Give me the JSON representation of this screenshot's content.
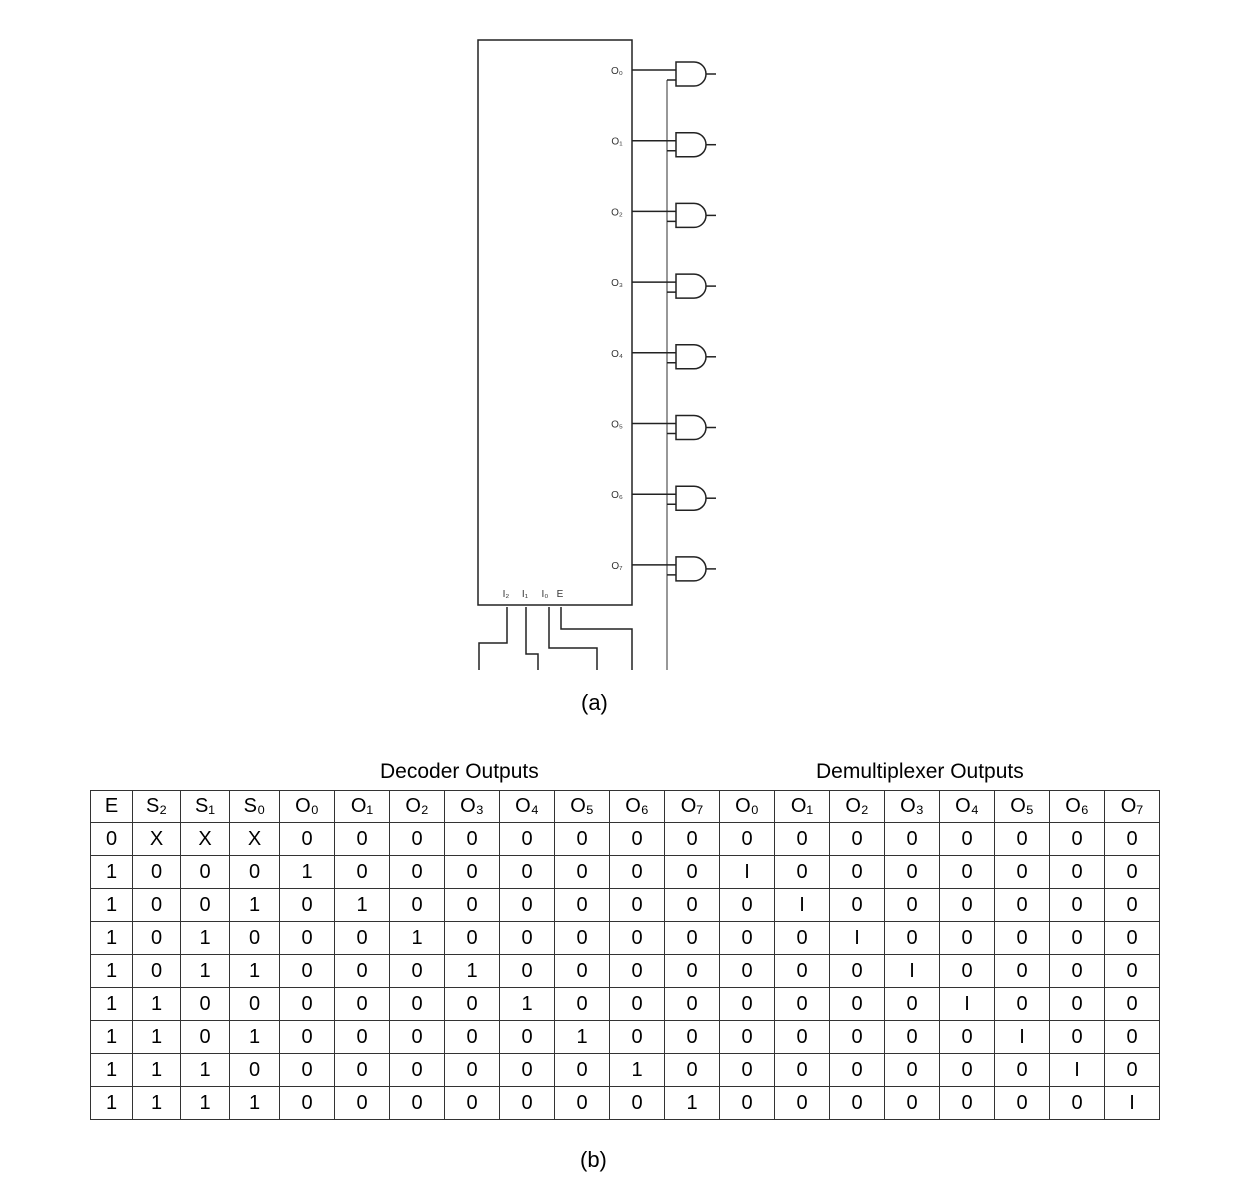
{
  "diagram": {
    "outputs": [
      "O₀",
      "O₁",
      "O₂",
      "O₃",
      "O₄",
      "O₅",
      "O₆",
      "O₇"
    ],
    "inputs": [
      "I₂",
      "I₁",
      "I₀",
      "E"
    ]
  },
  "captions": {
    "a": "(a)",
    "b": "(b)"
  },
  "table": {
    "decoder_title": "Decoder Outputs",
    "demux_title": "Demultiplexer Outputs",
    "headers": [
      "E",
      "S₂",
      "S₁",
      "S₀",
      "O₀",
      "O₁",
      "O₂",
      "O₃",
      "O₄",
      "O₅",
      "O₆",
      "O₇",
      "O₀",
      "O₁",
      "O₂",
      "O₃",
      "O₄",
      "O₅",
      "O₆",
      "O₇"
    ],
    "rows": [
      [
        "0",
        "X",
        "X",
        "X",
        "0",
        "0",
        "0",
        "0",
        "0",
        "0",
        "0",
        "0",
        "0",
        "0",
        "0",
        "0",
        "0",
        "0",
        "0",
        "0"
      ],
      [
        "1",
        "0",
        "0",
        "0",
        "1",
        "0",
        "0",
        "0",
        "0",
        "0",
        "0",
        "0",
        "I",
        "0",
        "0",
        "0",
        "0",
        "0",
        "0",
        "0"
      ],
      [
        "1",
        "0",
        "0",
        "1",
        "0",
        "1",
        "0",
        "0",
        "0",
        "0",
        "0",
        "0",
        "0",
        "I",
        "0",
        "0",
        "0",
        "0",
        "0",
        "0"
      ],
      [
        "1",
        "0",
        "1",
        "0",
        "0",
        "0",
        "1",
        "0",
        "0",
        "0",
        "0",
        "0",
        "0",
        "0",
        "I",
        "0",
        "0",
        "0",
        "0",
        "0"
      ],
      [
        "1",
        "0",
        "1",
        "1",
        "0",
        "0",
        "0",
        "1",
        "0",
        "0",
        "0",
        "0",
        "0",
        "0",
        "0",
        "I",
        "0",
        "0",
        "0",
        "0"
      ],
      [
        "1",
        "1",
        "0",
        "0",
        "0",
        "0",
        "0",
        "0",
        "1",
        "0",
        "0",
        "0",
        "0",
        "0",
        "0",
        "0",
        "I",
        "0",
        "0",
        "0"
      ],
      [
        "1",
        "1",
        "0",
        "1",
        "0",
        "0",
        "0",
        "0",
        "0",
        "1",
        "0",
        "0",
        "0",
        "0",
        "0",
        "0",
        "0",
        "I",
        "0",
        "0"
      ],
      [
        "1",
        "1",
        "1",
        "0",
        "0",
        "0",
        "0",
        "0",
        "0",
        "0",
        "1",
        "0",
        "0",
        "0",
        "0",
        "0",
        "0",
        "0",
        "I",
        "0"
      ],
      [
        "1",
        "1",
        "1",
        "1",
        "0",
        "0",
        "0",
        "0",
        "0",
        "0",
        "0",
        "1",
        "0",
        "0",
        "0",
        "0",
        "0",
        "0",
        "0",
        "I"
      ]
    ]
  }
}
